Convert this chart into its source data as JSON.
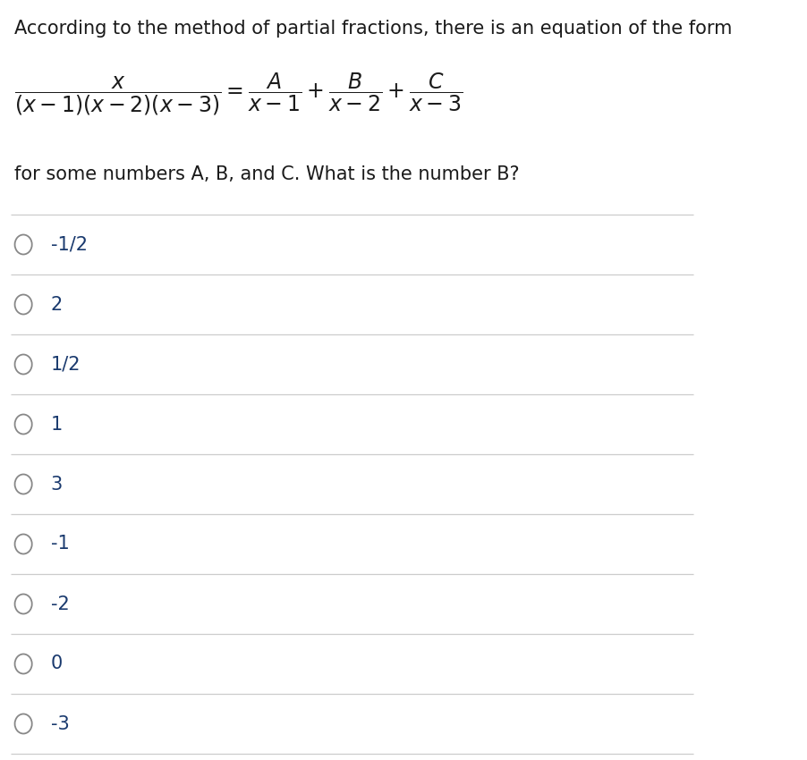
{
  "title_text": "According to the method of partial fractions, there is an equation of the form",
  "subtitle_text": "for some numbers A, B, and C. What is the number B?",
  "choices": [
    "-1/2",
    "2",
    "1/2",
    "1",
    "3",
    "-1",
    "-2",
    "0",
    "-3"
  ],
  "background_color": "#ffffff",
  "title_color": "#1a1a1a",
  "choice_text_color": "#1a3a6e",
  "circle_edge_color": "#888888",
  "line_color": "#cccccc",
  "title_fontsize": 15,
  "choice_fontsize": 15,
  "subtitle_fontsize": 15
}
